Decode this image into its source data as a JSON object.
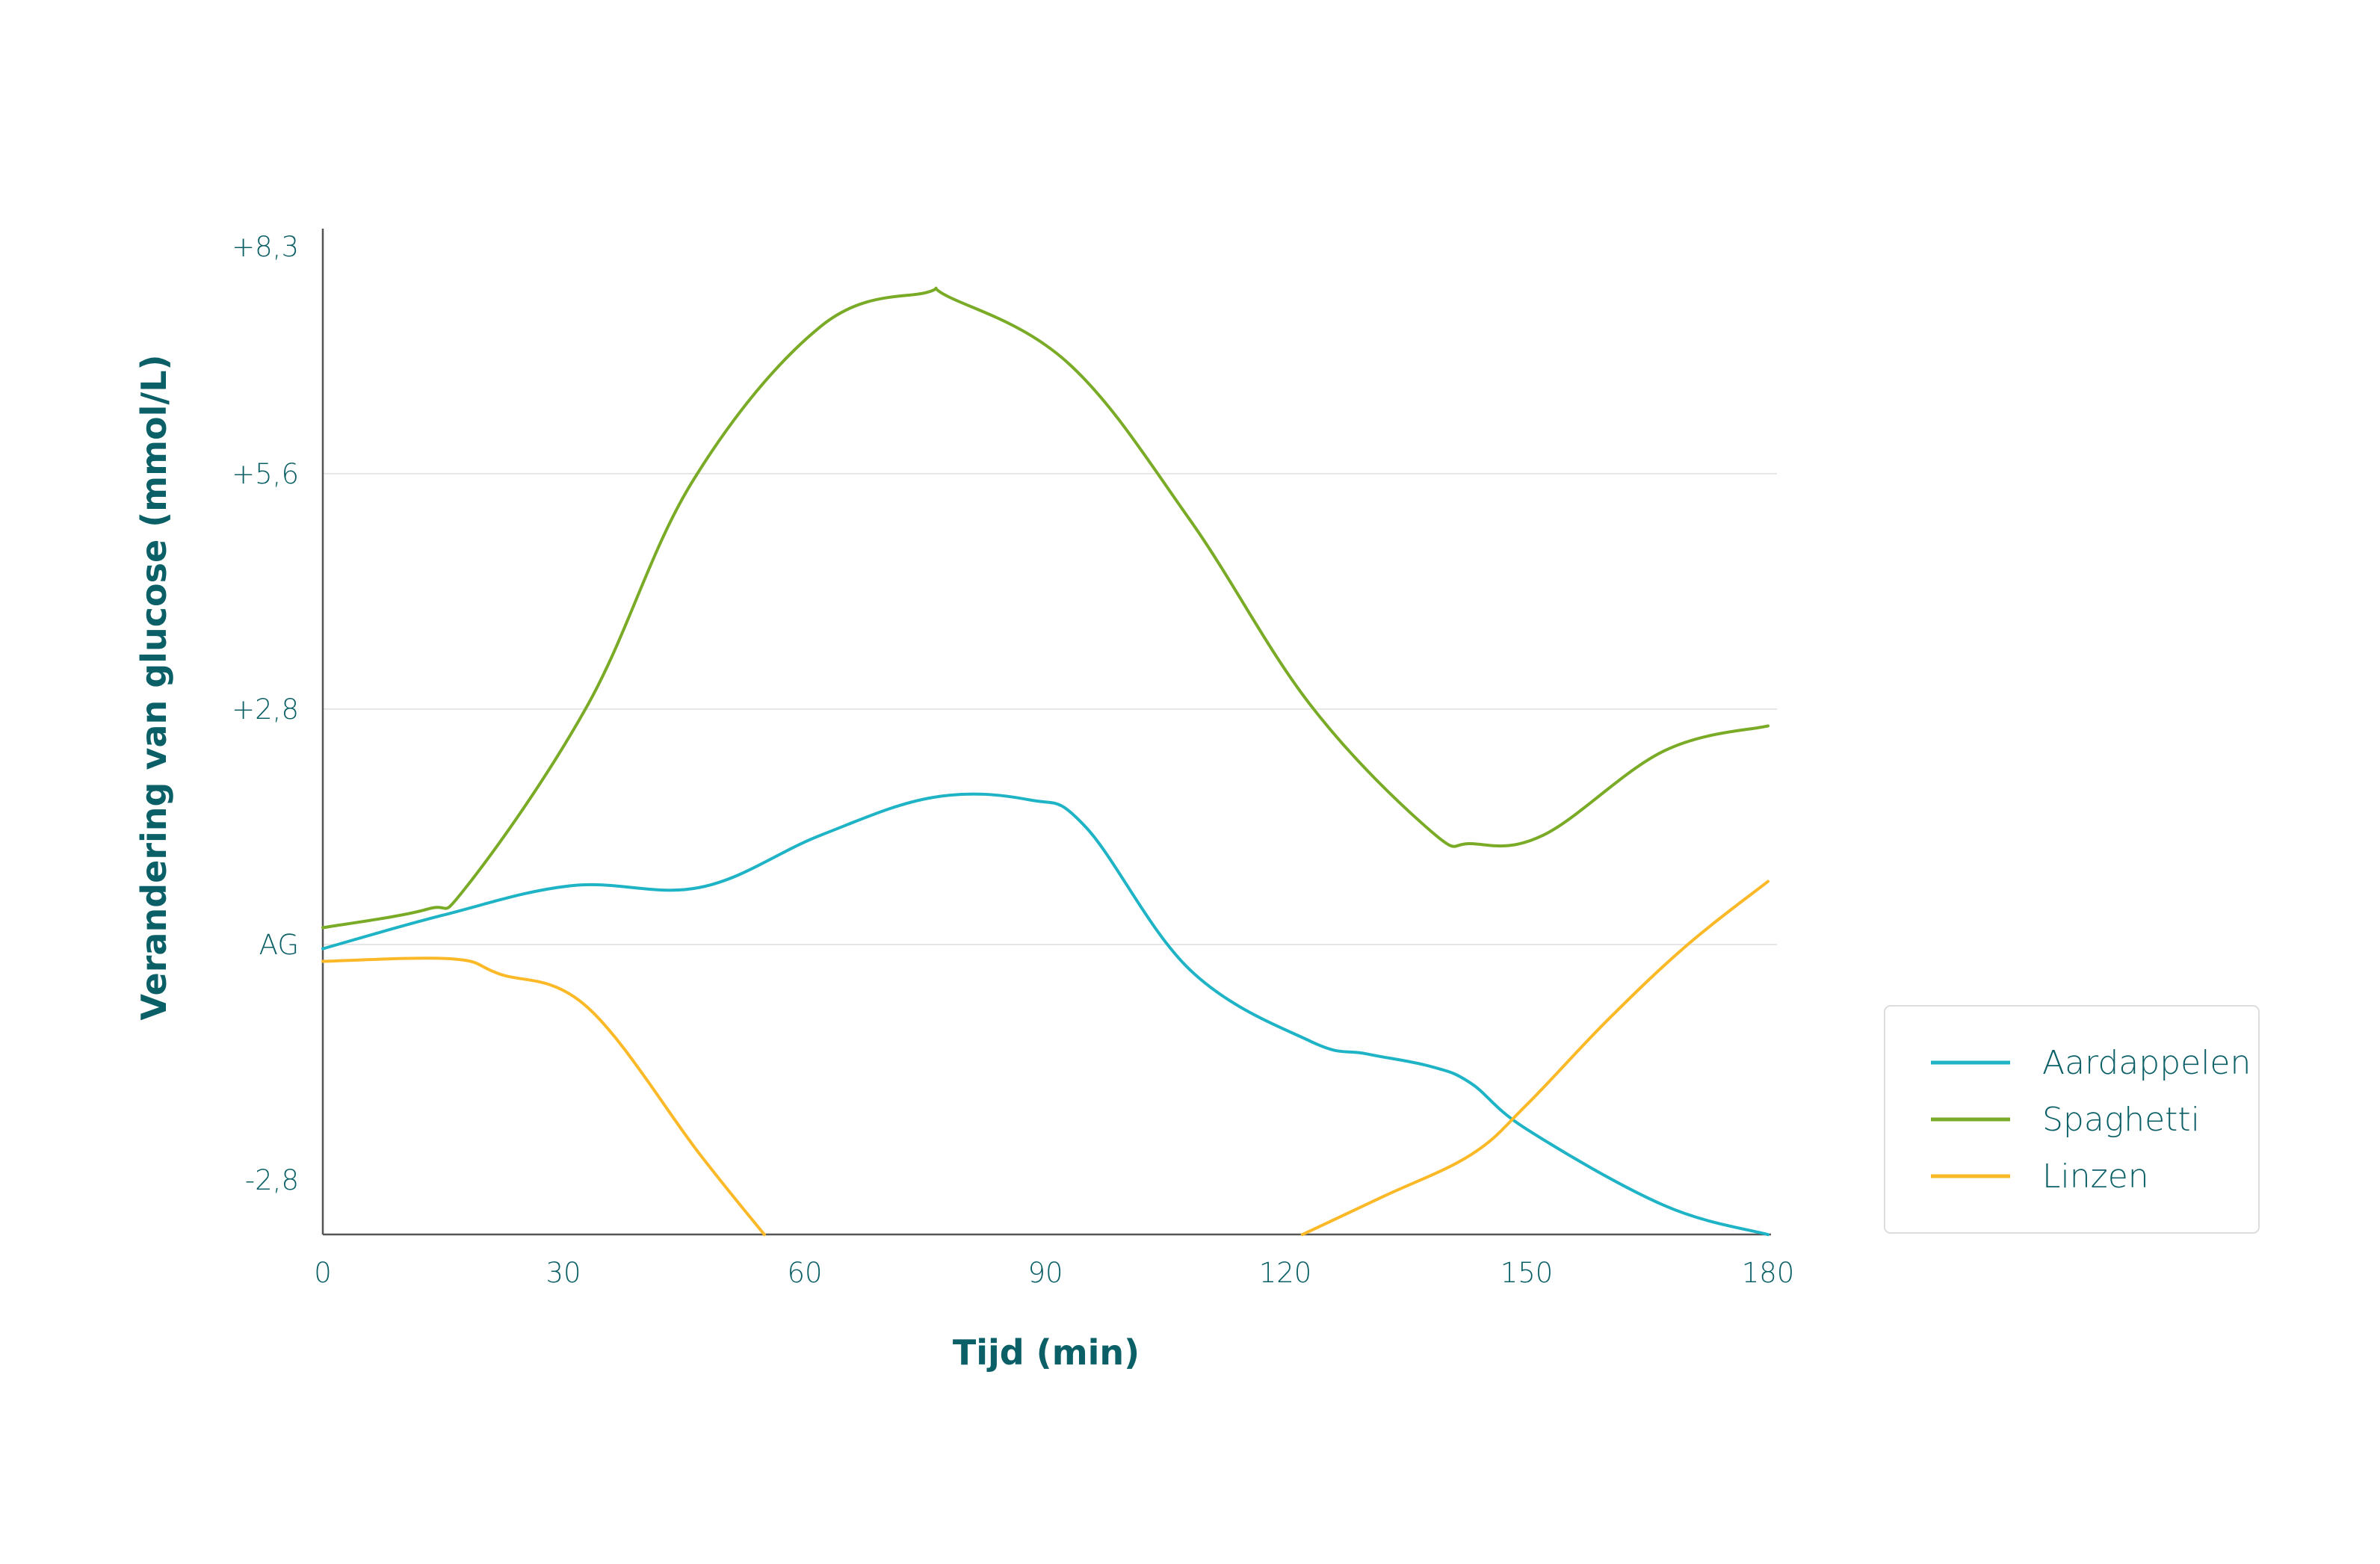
{
  "chart_data": {
    "type": "line",
    "xlabel": "Tijd (min)",
    "ylabel": "Verandering van glucose (mmol/L)",
    "x_ticks": [
      "0",
      "30",
      "60",
      "90",
      "120",
      "150",
      "180"
    ],
    "y_ticks": [
      {
        "label": "+8,3",
        "value": 8.3
      },
      {
        "label": "+5,6",
        "value": 5.6
      },
      {
        "label": "+2,8",
        "value": 2.8
      },
      {
        "label": "AG",
        "value": 0
      },
      {
        "label": "-2,8",
        "value": -2.8
      }
    ],
    "xlim": [
      0,
      180
    ],
    "ylim": [
      -3.6,
      8.5
    ],
    "grid": "horizontal",
    "legend_position": "bottom-right",
    "series": [
      {
        "name": "Aardappelen",
        "color": "#1fb3c6",
        "points": [
          [
            0,
            -0.05
          ],
          [
            15,
            0.35
          ],
          [
            31,
            0.7
          ],
          [
            47,
            0.68
          ],
          [
            62,
            1.3
          ],
          [
            76,
            1.75
          ],
          [
            88,
            1.72
          ],
          [
            95,
            1.4
          ],
          [
            108,
            -0.3
          ],
          [
            123,
            -1.15
          ],
          [
            130,
            -1.3
          ],
          [
            138,
            -1.45
          ],
          [
            143,
            -1.65
          ],
          [
            150,
            -2.2
          ],
          [
            167,
            -3.1
          ],
          [
            180,
            -3.45
          ]
        ]
      },
      {
        "name": "Spaghetti",
        "color": "#7aab27",
        "points": [
          [
            0,
            0.2
          ],
          [
            13,
            0.42
          ],
          [
            18,
            0.7
          ],
          [
            33,
            2.85
          ],
          [
            46,
            5.5
          ],
          [
            62,
            7.35
          ],
          [
            75,
            7.75
          ],
          [
            78,
            7.7
          ],
          [
            93,
            6.9
          ],
          [
            108,
            5.05
          ],
          [
            123,
            2.85
          ],
          [
            138,
            1.35
          ],
          [
            143,
            1.2
          ],
          [
            152,
            1.3
          ],
          [
            167,
            2.3
          ],
          [
            180,
            2.6
          ]
        ]
      },
      {
        "name": "Linzen",
        "color": "#fbb928",
        "points": [
          [
            0,
            -0.2
          ],
          [
            16,
            -0.17
          ],
          [
            22,
            -0.35
          ],
          [
            33,
            -0.75
          ],
          [
            47,
            -2.5
          ],
          [
            55,
            -3.45
          ]
        ]
      },
      {
        "name": "",
        "color": "#fbb928",
        "points": [
          [
            122,
            -3.45
          ],
          [
            132,
            -3.0
          ],
          [
            143,
            -2.5
          ],
          [
            150,
            -1.9
          ],
          [
            160,
            -0.9
          ],
          [
            170,
            0.0
          ],
          [
            180,
            0.75
          ]
        ]
      }
    ]
  }
}
